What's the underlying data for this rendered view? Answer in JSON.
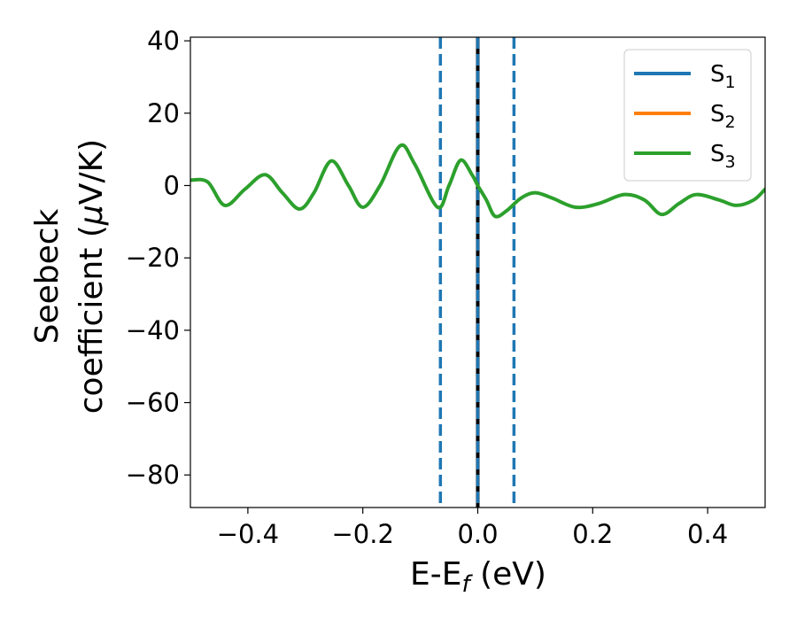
{
  "chart_data": {
    "type": "line",
    "xlabel": {
      "main": "E-E",
      "sub": "f",
      "rest": " (eV)"
    },
    "ylabel": {
      "line1": "Seebeck",
      "line2_prefix": "coefficient  (",
      "line2_mu": "μ",
      "line2_suffix": "V/K)"
    },
    "xlim": [
      -0.5,
      0.5
    ],
    "ylim": [
      -89,
      41
    ],
    "xticks": [
      -0.4,
      -0.2,
      0.0,
      0.2,
      0.4
    ],
    "xtick_labels": [
      "−0.4",
      "−0.2",
      "0.0",
      "0.2",
      "0.4"
    ],
    "yticks": [
      40,
      20,
      0,
      -20,
      -40,
      -60,
      -80
    ],
    "ytick_labels": [
      "40",
      "20",
      "0",
      "−20",
      "−40",
      "−60",
      "−80"
    ],
    "grid": false,
    "legend": {
      "placement": "top-right"
    },
    "series": [
      {
        "name": "S",
        "sub": "1",
        "color": "#1f77b4",
        "x": [],
        "y": []
      },
      {
        "name": "S",
        "sub": "2",
        "color": "#ff7f0e",
        "x": [],
        "y": []
      },
      {
        "name": "S",
        "sub": "3",
        "color": "#2ca02c",
        "x": [
          -0.5,
          -0.47,
          -0.44,
          -0.405,
          -0.37,
          -0.34,
          -0.31,
          -0.285,
          -0.255,
          -0.225,
          -0.2,
          -0.17,
          -0.135,
          -0.11,
          -0.07,
          -0.05,
          -0.03,
          -0.01,
          0.0,
          0.015,
          0.03,
          0.05,
          0.075,
          0.1,
          0.13,
          0.17,
          0.21,
          0.255,
          0.29,
          0.32,
          0.35,
          0.38,
          0.42,
          0.45,
          0.48,
          0.5
        ],
        "y": [
          1.5,
          1.0,
          -5.5,
          -1.0,
          3.0,
          -2.0,
          -6.5,
          -2.0,
          6.8,
          0.0,
          -6.0,
          0.0,
          11.0,
          6.0,
          -6.0,
          0.0,
          7.0,
          3.0,
          0.0,
          -4.0,
          -8.5,
          -7.0,
          -3.5,
          -2.0,
          -3.5,
          -6.0,
          -5.0,
          -2.5,
          -4.0,
          -8.0,
          -5.0,
          -2.5,
          -4.0,
          -5.5,
          -4.0,
          -1.0
        ]
      }
    ],
    "vlines": [
      {
        "x": -0.065,
        "style": "dashed",
        "color": "#1f77b4"
      },
      {
        "x": 0.0,
        "style": "solid",
        "color": "#000000"
      },
      {
        "x": 0.0,
        "style": "dashed",
        "color": "#1f77b4"
      },
      {
        "x": 0.063,
        "style": "dashed",
        "color": "#1f77b4"
      }
    ]
  }
}
